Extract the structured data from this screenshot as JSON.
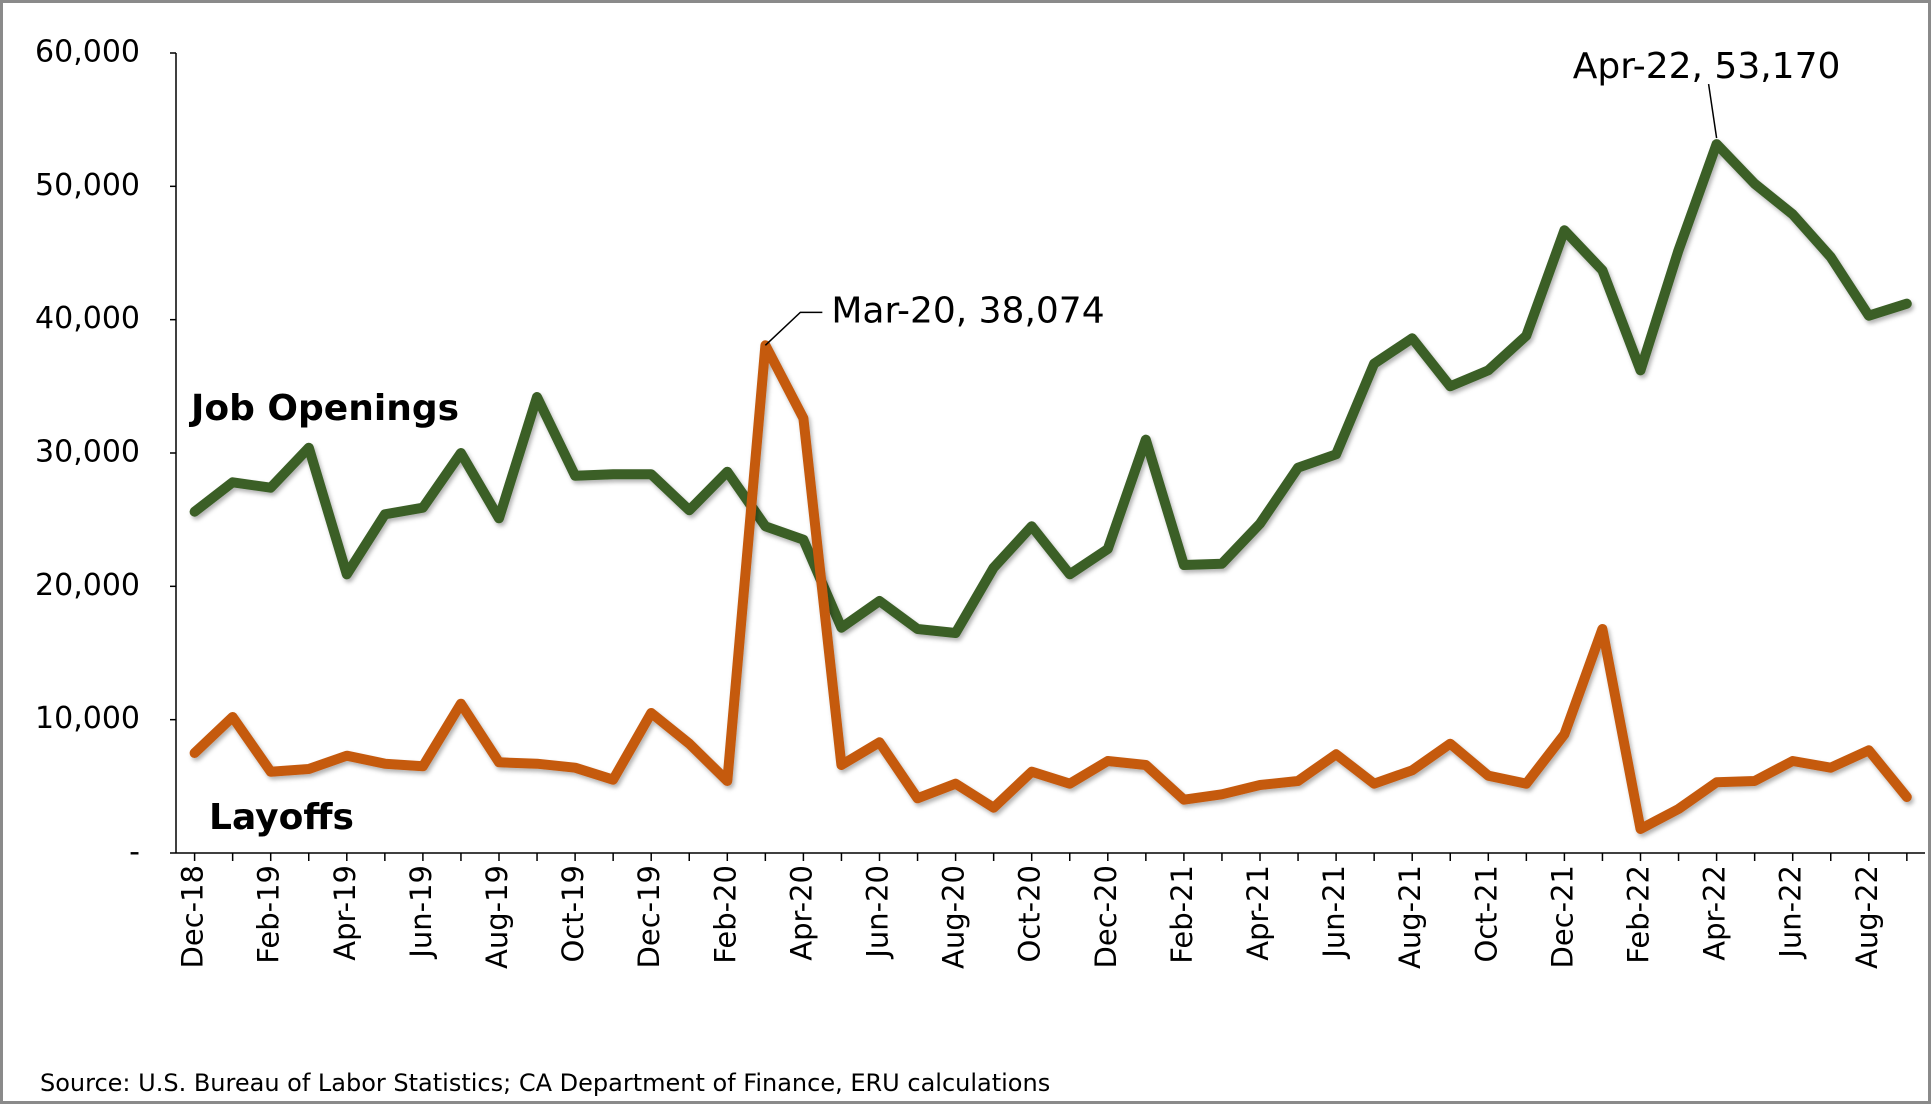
{
  "chart_data": {
    "type": "line",
    "source": "Source: U.S. Bureau of Labor Statistics; CA Department of Finance, ERU calculations",
    "categories": [
      "Dec-18",
      null,
      "Feb-19",
      null,
      "Apr-19",
      null,
      "Jun-19",
      null,
      "Aug-19",
      null,
      "Oct-19",
      null,
      "Dec-19",
      null,
      "Feb-20",
      null,
      "Apr-20",
      null,
      "Jun-20",
      null,
      "Aug-20",
      null,
      "Oct-20",
      null,
      "Dec-20",
      null,
      "Feb-21",
      null,
      "Apr-21",
      null,
      "Jun-21",
      null,
      "Aug-21",
      null,
      "Oct-21",
      null,
      "Dec-21",
      null,
      "Feb-22",
      null,
      "Apr-22",
      null,
      "Jun-22",
      null,
      "Aug-22",
      null
    ],
    "series": [
      {
        "name": "Job Openings",
        "color": "#3b5f27",
        "values": [
          25600,
          27800,
          27400,
          30400,
          20900,
          25400,
          25900,
          30000,
          25100,
          34200,
          28300,
          28400,
          28400,
          25700,
          28600,
          24500,
          23500,
          16900,
          18900,
          16800,
          16500,
          21400,
          24500,
          20900,
          22800,
          31000,
          21600,
          21700,
          24700,
          28900,
          29900,
          36700,
          38600,
          35000,
          36200,
          38800,
          46700,
          43700,
          36200,
          45200,
          53170,
          50200,
          47900,
          44700,
          40300,
          41200
        ],
        "value_labels": [
          null,
          null,
          null,
          null,
          null,
          null,
          null,
          null,
          null,
          null,
          null,
          null,
          null,
          null,
          null,
          null,
          null,
          null,
          null,
          null,
          null,
          null,
          null,
          null,
          null,
          null,
          null,
          null,
          null,
          null,
          null,
          null,
          null,
          null,
          null,
          null,
          null,
          null,
          null,
          null,
          "Apr-22,  53,170",
          null,
          null,
          null,
          null,
          null
        ]
      },
      {
        "name": "Layoffs",
        "color": "#c55a11",
        "values": [
          7500,
          10200,
          6100,
          6300,
          7300,
          6700,
          6500,
          11200,
          6800,
          6700,
          6400,
          5500,
          10500,
          8200,
          5400,
          38074,
          32600,
          6600,
          8300,
          4100,
          5200,
          3400,
          6100,
          5200,
          6900,
          6600,
          4000,
          4400,
          5100,
          5400,
          7400,
          5200,
          6200,
          8200,
          5800,
          5200,
          8900,
          16800,
          1800,
          3300,
          5300,
          5400,
          6900,
          6400,
          7700,
          4200
        ],
        "value_labels": [
          null,
          null,
          null,
          null,
          null,
          null,
          null,
          null,
          null,
          null,
          null,
          null,
          null,
          null,
          null,
          "Mar-20,  38,074",
          null,
          null,
          null,
          null,
          null,
          null,
          null,
          null,
          null,
          null,
          null,
          null,
          null,
          null,
          null,
          null,
          null,
          null,
          null,
          null,
          null,
          null,
          null,
          null,
          null,
          null,
          null,
          null,
          null,
          null
        ]
      }
    ],
    "ylim": [
      0,
      60000
    ],
    "yticks": [
      {
        "value": 0,
        "label": "-"
      },
      {
        "value": 10000,
        "label": "10,000"
      },
      {
        "value": 20000,
        "label": "20,000"
      },
      {
        "value": 30000,
        "label": "30,000"
      },
      {
        "value": 40000,
        "label": "40,000"
      },
      {
        "value": 50000,
        "label": "50,000"
      },
      {
        "value": 60000,
        "label": "60,000"
      }
    ],
    "grid": false
  }
}
